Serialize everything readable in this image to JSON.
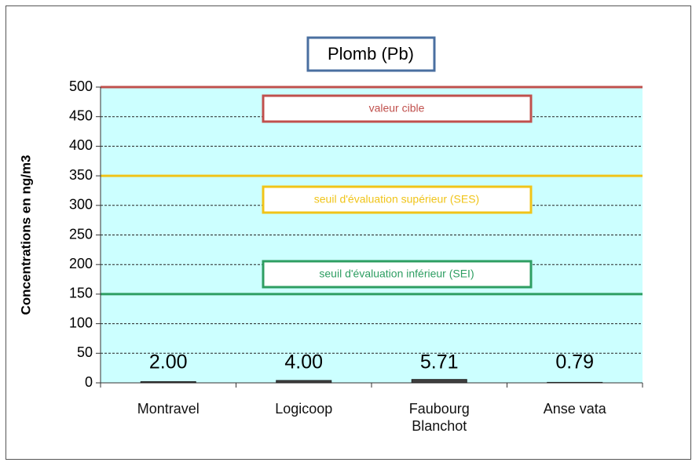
{
  "chart_data": {
    "type": "bar",
    "title": "Plomb (Pb)",
    "y_label": "Concentrations en ng/m3",
    "categories": [
      "Montravel",
      "Logicoop",
      "Faubourg Blanchot",
      "Anse vata"
    ],
    "values": [
      2.0,
      4.0,
      5.71,
      0.79
    ],
    "value_labels": [
      "2.00",
      "4.00",
      "5.71",
      "0.79"
    ],
    "color": "#404040",
    "ylim": [
      0,
      500
    ],
    "yticks": [
      0,
      50,
      100,
      150,
      200,
      250,
      300,
      350,
      400,
      450,
      500
    ],
    "grid": true,
    "thresholds": [
      {
        "value": 500,
        "label": "valeur cible",
        "color": "#c0504d"
      },
      {
        "value": 350,
        "label": "seuil d'évaluation  supérieur (SES)",
        "color": "#f0c419"
      },
      {
        "value": 150,
        "label": "seuil d'évaluation  inférieur (SEI)",
        "color": "#2e9e62"
      }
    ]
  }
}
